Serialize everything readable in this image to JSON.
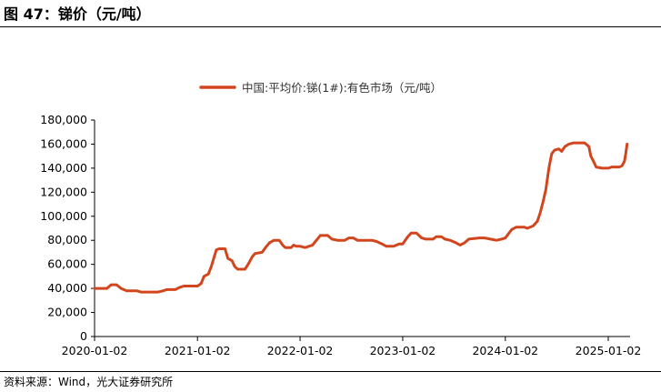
{
  "figure": {
    "title": "图 47：锑价（元/吨）",
    "source": "资料来源：Wind，光大证券研究所"
  },
  "colors": {
    "series": "#d2461e",
    "axis": "#000000"
  },
  "chart_data": {
    "type": "line",
    "title": "",
    "xlabel": "",
    "ylabel": "",
    "ylim": [
      0,
      180000
    ],
    "yticks": [
      "0",
      "20,000",
      "40,000",
      "60,000",
      "80,000",
      "100,000",
      "120,000",
      "140,000",
      "160,000",
      "180,000"
    ],
    "xticks": [
      "2020-01-02",
      "2021-01-02",
      "2022-01-02",
      "2023-01-02",
      "2024-01-02",
      "2025-01-02"
    ],
    "grid": false,
    "legend": "top-center",
    "series": [
      {
        "name": "中国:平均价:锑(1#):有色市场（元/吨）",
        "points": [
          [
            "2020-01-02",
            40000
          ],
          [
            "2020-02-15",
            40000
          ],
          [
            "2020-03-01",
            43000
          ],
          [
            "2020-03-20",
            43000
          ],
          [
            "2020-04-05",
            40000
          ],
          [
            "2020-04-25",
            38000
          ],
          [
            "2020-06-01",
            38000
          ],
          [
            "2020-06-15",
            37000
          ],
          [
            "2020-08-15",
            37000
          ],
          [
            "2020-09-01",
            38000
          ],
          [
            "2020-09-15",
            39000
          ],
          [
            "2020-10-15",
            39000
          ],
          [
            "2020-11-01",
            41000
          ],
          [
            "2020-11-15",
            42000
          ],
          [
            "2020-12-15",
            42000
          ],
          [
            "2021-01-02",
            42000
          ],
          [
            "2021-01-15",
            44000
          ],
          [
            "2021-01-25",
            50000
          ],
          [
            "2021-02-10",
            52000
          ],
          [
            "2021-02-20",
            58000
          ],
          [
            "2021-03-01",
            65000
          ],
          [
            "2021-03-10",
            72000
          ],
          [
            "2021-03-20",
            73000
          ],
          [
            "2021-04-10",
            73000
          ],
          [
            "2021-04-20",
            65000
          ],
          [
            "2021-05-05",
            63000
          ],
          [
            "2021-05-15",
            58000
          ],
          [
            "2021-05-25",
            56000
          ],
          [
            "2021-06-20",
            56000
          ],
          [
            "2021-07-01",
            60000
          ],
          [
            "2021-07-15",
            66000
          ],
          [
            "2021-07-25",
            69000
          ],
          [
            "2021-08-20",
            70000
          ],
          [
            "2021-09-01",
            74000
          ],
          [
            "2021-09-15",
            78000
          ],
          [
            "2021-10-01",
            80000
          ],
          [
            "2021-10-20",
            80000
          ],
          [
            "2021-11-01",
            76000
          ],
          [
            "2021-11-10",
            74000
          ],
          [
            "2021-12-01",
            74000
          ],
          [
            "2021-12-10",
            76000
          ],
          [
            "2021-12-20",
            75000
          ],
          [
            "2022-01-02",
            75000
          ],
          [
            "2022-01-20",
            74000
          ],
          [
            "2022-02-15",
            76000
          ],
          [
            "2022-03-01",
            80000
          ],
          [
            "2022-03-15",
            84000
          ],
          [
            "2022-04-10",
            84000
          ],
          [
            "2022-04-25",
            81000
          ],
          [
            "2022-05-15",
            80000
          ],
          [
            "2022-06-10",
            80000
          ],
          [
            "2022-06-25",
            82000
          ],
          [
            "2022-07-10",
            82000
          ],
          [
            "2022-07-25",
            80000
          ],
          [
            "2022-08-20",
            80000
          ],
          [
            "2022-09-15",
            80000
          ],
          [
            "2022-10-01",
            79000
          ],
          [
            "2022-10-20",
            77000
          ],
          [
            "2022-11-05",
            75000
          ],
          [
            "2022-12-01",
            75000
          ],
          [
            "2022-12-20",
            77000
          ],
          [
            "2023-01-02",
            77000
          ],
          [
            "2023-01-20",
            83000
          ],
          [
            "2023-02-01",
            86000
          ],
          [
            "2023-02-20",
            86000
          ],
          [
            "2023-03-10",
            82000
          ],
          [
            "2023-03-25",
            81000
          ],
          [
            "2023-04-20",
            81000
          ],
          [
            "2023-05-01",
            83000
          ],
          [
            "2023-05-20",
            83000
          ],
          [
            "2023-06-01",
            81000
          ],
          [
            "2023-06-20",
            80000
          ],
          [
            "2023-07-10",
            78000
          ],
          [
            "2023-07-25",
            76000
          ],
          [
            "2023-08-10",
            78000
          ],
          [
            "2023-08-25",
            81000
          ],
          [
            "2023-10-01",
            82000
          ],
          [
            "2023-10-20",
            82000
          ],
          [
            "2023-11-10",
            81000
          ],
          [
            "2023-12-01",
            80000
          ],
          [
            "2023-12-20",
            81000
          ],
          [
            "2024-01-02",
            82000
          ],
          [
            "2024-01-15",
            86000
          ],
          [
            "2024-01-25",
            89000
          ],
          [
            "2024-02-10",
            91000
          ],
          [
            "2024-03-10",
            91000
          ],
          [
            "2024-03-20",
            90000
          ],
          [
            "2024-04-10",
            92000
          ],
          [
            "2024-04-25",
            96000
          ],
          [
            "2024-05-05",
            103000
          ],
          [
            "2024-05-15",
            112000
          ],
          [
            "2024-05-25",
            122000
          ],
          [
            "2024-06-05",
            140000
          ],
          [
            "2024-06-15",
            152000
          ],
          [
            "2024-06-25",
            155000
          ],
          [
            "2024-07-10",
            156000
          ],
          [
            "2024-07-20",
            154000
          ],
          [
            "2024-08-01",
            158000
          ],
          [
            "2024-08-15",
            160000
          ],
          [
            "2024-09-01",
            161000
          ],
          [
            "2024-10-10",
            161000
          ],
          [
            "2024-10-25",
            158000
          ],
          [
            "2024-11-01",
            150000
          ],
          [
            "2024-11-10",
            146000
          ],
          [
            "2024-11-20",
            141000
          ],
          [
            "2024-12-10",
            140000
          ],
          [
            "2025-01-02",
            140000
          ],
          [
            "2025-01-15",
            141000
          ],
          [
            "2025-02-10",
            141000
          ],
          [
            "2025-02-20",
            142000
          ],
          [
            "2025-03-01",
            146000
          ],
          [
            "2025-03-05",
            152000
          ],
          [
            "2025-03-10",
            160000
          ]
        ]
      }
    ]
  }
}
